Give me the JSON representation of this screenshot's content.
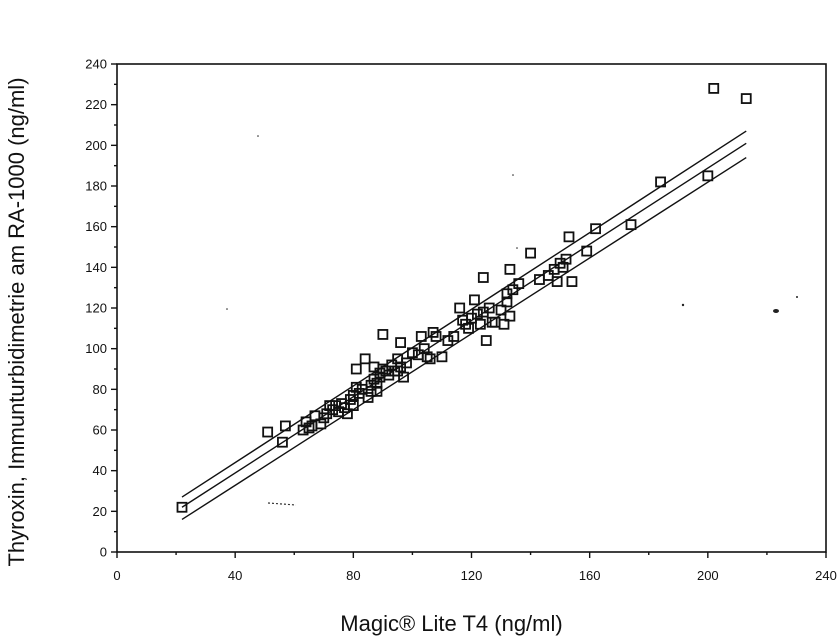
{
  "chart_data": {
    "type": "scatter",
    "title": "",
    "xlabel": "Magic® Lite T4 (ng/ml)",
    "ylabel": "Thyroxin, Immunturbidimetrie am RA-1000 (ng/ml)",
    "xlim": [
      0,
      240
    ],
    "ylim": [
      0,
      240
    ],
    "x_ticks": [
      0,
      40,
      80,
      120,
      160,
      200,
      240
    ],
    "y_ticks": [
      0,
      20,
      40,
      60,
      80,
      100,
      120,
      140,
      160,
      180,
      200,
      220,
      240
    ],
    "grid": false,
    "legend": "none",
    "marker": "open-square",
    "regression_lines": [
      {
        "x": [
          22,
          213
        ],
        "y": [
          27,
          207
        ]
      },
      {
        "x": [
          22,
          213
        ],
        "y": [
          22,
          201
        ]
      },
      {
        "x": [
          22,
          213
        ],
        "y": [
          16,
          194
        ]
      }
    ],
    "series": [
      {
        "points": [
          [
            22,
            22
          ],
          [
            51,
            59
          ],
          [
            56,
            54
          ],
          [
            57,
            62
          ],
          [
            63,
            60
          ],
          [
            64,
            64
          ],
          [
            65,
            61
          ],
          [
            66,
            62
          ],
          [
            67,
            67
          ],
          [
            69,
            63
          ],
          [
            70,
            66
          ],
          [
            71,
            68
          ],
          [
            72,
            72
          ],
          [
            73,
            70
          ],
          [
            74,
            72
          ],
          [
            75,
            69
          ],
          [
            76,
            73
          ],
          [
            77,
            71
          ],
          [
            78,
            68
          ],
          [
            79,
            75
          ],
          [
            80,
            77
          ],
          [
            80,
            72
          ],
          [
            81,
            81
          ],
          [
            81,
            90
          ],
          [
            82,
            78
          ],
          [
            83,
            80
          ],
          [
            84,
            95
          ],
          [
            85,
            76
          ],
          [
            86,
            82
          ],
          [
            86,
            79
          ],
          [
            87,
            85
          ],
          [
            87,
            91
          ],
          [
            88,
            83
          ],
          [
            88,
            79
          ],
          [
            89,
            86
          ],
          [
            89,
            88
          ],
          [
            90,
            107
          ],
          [
            90,
            90
          ],
          [
            91,
            89
          ],
          [
            92,
            87
          ],
          [
            93,
            92
          ],
          [
            94,
            89
          ],
          [
            95,
            95
          ],
          [
            95,
            89
          ],
          [
            96,
            103
          ],
          [
            96,
            91
          ],
          [
            97,
            86
          ],
          [
            98,
            93
          ],
          [
            100,
            98
          ],
          [
            102,
            97
          ],
          [
            103,
            106
          ],
          [
            104,
            100
          ],
          [
            105,
            96
          ],
          [
            106,
            95
          ],
          [
            107,
            108
          ],
          [
            108,
            106
          ],
          [
            110,
            96
          ],
          [
            112,
            104
          ],
          [
            114,
            106
          ],
          [
            116,
            120
          ],
          [
            117,
            114
          ],
          [
            118,
            112
          ],
          [
            119,
            110
          ],
          [
            120,
            115
          ],
          [
            121,
            124
          ],
          [
            122,
            117
          ],
          [
            123,
            112
          ],
          [
            124,
            135
          ],
          [
            124,
            118
          ],
          [
            125,
            104
          ],
          [
            126,
            120
          ],
          [
            127,
            113
          ],
          [
            128,
            113
          ],
          [
            130,
            119
          ],
          [
            131,
            112
          ],
          [
            132,
            123
          ],
          [
            132,
            127
          ],
          [
            133,
            116
          ],
          [
            133,
            139
          ],
          [
            134,
            129
          ],
          [
            136,
            132
          ],
          [
            140,
            147
          ],
          [
            143,
            134
          ],
          [
            146,
            136
          ],
          [
            148,
            139
          ],
          [
            149,
            133
          ],
          [
            150,
            142
          ],
          [
            151,
            140
          ],
          [
            152,
            144
          ],
          [
            153,
            155
          ],
          [
            154,
            133
          ],
          [
            159,
            148
          ],
          [
            162,
            159
          ],
          [
            174,
            161
          ],
          [
            184,
            182
          ],
          [
            200,
            185
          ],
          [
            202,
            228
          ],
          [
            213,
            223
          ]
        ]
      }
    ]
  }
}
